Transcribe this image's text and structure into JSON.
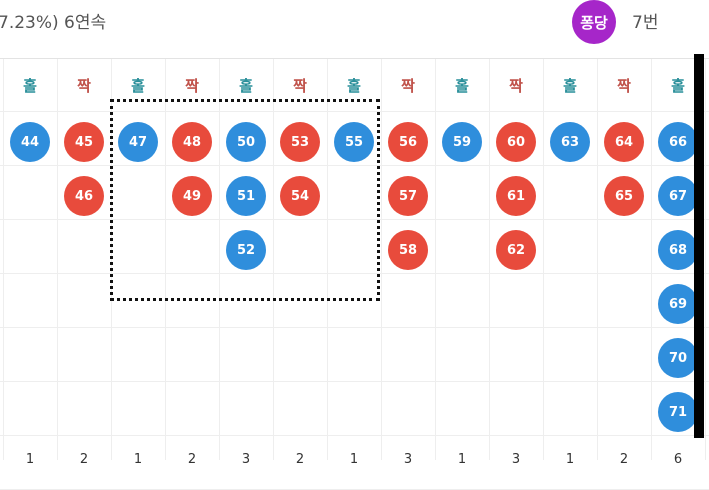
{
  "header": {
    "stats_text": "7.23%) 6연속",
    "badge_label": "퐁당",
    "badge_count": "7번",
    "badge_color": "#a626c9"
  },
  "colors": {
    "odd": "#2f8edc",
    "even": "#e84b3c",
    "odd_header": "#2a8f9a",
    "even_header": "#c0524a"
  },
  "columns": [
    {
      "label": "홀",
      "type": "odd",
      "footer": "1",
      "balls": [
        "44"
      ]
    },
    {
      "label": "짝",
      "type": "even",
      "footer": "2",
      "balls": [
        "45",
        "46"
      ]
    },
    {
      "label": "홀",
      "type": "odd",
      "footer": "1",
      "balls": [
        "47"
      ]
    },
    {
      "label": "짝",
      "type": "even",
      "footer": "2",
      "balls": [
        "48",
        "49"
      ]
    },
    {
      "label": "홀",
      "type": "odd",
      "footer": "3",
      "balls": [
        "50",
        "51",
        "52"
      ]
    },
    {
      "label": "짝",
      "type": "even",
      "footer": "2",
      "balls": [
        "53",
        "54"
      ]
    },
    {
      "label": "홀",
      "type": "odd",
      "footer": "1",
      "balls": [
        "55"
      ]
    },
    {
      "label": "짝",
      "type": "even",
      "footer": "3",
      "balls": [
        "56",
        "57",
        "58"
      ]
    },
    {
      "label": "홀",
      "type": "odd",
      "footer": "1",
      "balls": [
        "59"
      ]
    },
    {
      "label": "짝",
      "type": "even",
      "footer": "3",
      "balls": [
        "60",
        "61",
        "62"
      ]
    },
    {
      "label": "홀",
      "type": "odd",
      "footer": "1",
      "balls": [
        "63"
      ]
    },
    {
      "label": "짝",
      "type": "even",
      "footer": "2",
      "balls": [
        "64",
        "65"
      ]
    },
    {
      "label": "홀",
      "type": "odd",
      "footer": "6",
      "balls": [
        "66",
        "67",
        "68",
        "69",
        "70",
        "71"
      ]
    }
  ]
}
